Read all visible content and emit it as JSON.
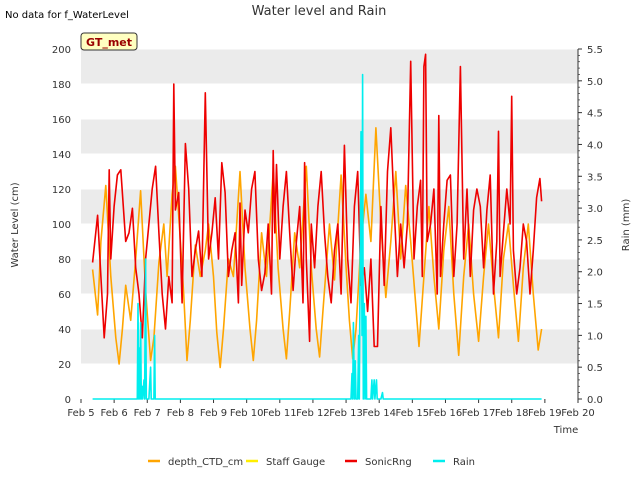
{
  "header": {
    "title": "Water level and Rain",
    "no_data_note": "No data for f_WaterLevel",
    "station_badge": "GT_met"
  },
  "colors": {
    "depth_CTD_cm": "#FFA500",
    "Staff Gauge": "#FFEE00",
    "SonicRng": "#EE0000",
    "Rain": "#00EEEE",
    "band": "#EBEBEB",
    "badge_fill": "#FFFFC0",
    "badge_text": "#990000"
  },
  "chart_data": {
    "type": "line",
    "title": "Water level and Rain",
    "xlabel": "Time",
    "ylabel": "Water Level (cm)",
    "y2label": "Rain (mm)",
    "xlim": [
      5,
      20
    ],
    "ylim": [
      0,
      200
    ],
    "y2lim": [
      0,
      5.5
    ],
    "x_ticks": [
      {
        "x": 5,
        "label": "Feb 5"
      },
      {
        "x": 6,
        "label": "Feb 6"
      },
      {
        "x": 7,
        "label": "Feb 7"
      },
      {
        "x": 8,
        "label": "Feb 8"
      },
      {
        "x": 9,
        "label": "Feb 9"
      },
      {
        "x": 10,
        "label": "Feb 10"
      },
      {
        "x": 11,
        "label": "Feb 11"
      },
      {
        "x": 12,
        "label": "Feb 12"
      },
      {
        "x": 13,
        "label": "Feb 13"
      },
      {
        "x": 14,
        "label": "Feb 14"
      },
      {
        "x": 15,
        "label": "Feb 15"
      },
      {
        "x": 16,
        "label": "Feb 16"
      },
      {
        "x": 17,
        "label": "Feb 17"
      },
      {
        "x": 18,
        "label": "Feb 18"
      },
      {
        "x": 19,
        "label": "Feb 19"
      },
      {
        "x": 20,
        "label": "Feb 20"
      }
    ],
    "y_ticks": [
      0,
      20,
      40,
      60,
      80,
      100,
      120,
      140,
      160,
      180,
      200
    ],
    "y2_ticks": [
      "0.0",
      "0.5",
      "1.0",
      "1.5",
      "2.0",
      "2.5",
      "3.0",
      "3.5",
      "4.0",
      "4.5",
      "5.0",
      "5.5"
    ],
    "grid": "horizontal bands",
    "legend_position": "bottom",
    "series": [
      {
        "name": "depth_CTD_cm",
        "axis": "left",
        "points": [
          [
            5.35,
            74
          ],
          [
            5.5,
            48
          ],
          [
            5.6,
            90
          ],
          [
            5.75,
            122
          ],
          [
            5.9,
            70
          ],
          [
            6.05,
            35
          ],
          [
            6.15,
            20
          ],
          [
            6.25,
            40
          ],
          [
            6.35,
            65
          ],
          [
            6.5,
            45
          ],
          [
            6.65,
            80
          ],
          [
            6.8,
            119
          ],
          [
            6.95,
            62
          ],
          [
            7.1,
            22
          ],
          [
            7.2,
            35
          ],
          [
            7.35,
            78
          ],
          [
            7.5,
            100
          ],
          [
            7.6,
            70
          ],
          [
            7.75,
            117
          ],
          [
            7.85,
            133
          ],
          [
            8.0,
            90
          ],
          [
            8.1,
            60
          ],
          [
            8.2,
            22
          ],
          [
            8.3,
            45
          ],
          [
            8.45,
            88
          ],
          [
            8.6,
            70
          ],
          [
            8.75,
            85
          ],
          [
            8.85,
            100
          ],
          [
            9.0,
            70
          ],
          [
            9.1,
            38
          ],
          [
            9.2,
            18
          ],
          [
            9.3,
            40
          ],
          [
            9.45,
            80
          ],
          [
            9.6,
            70
          ],
          [
            9.8,
            130
          ],
          [
            9.95,
            75
          ],
          [
            10.1,
            40
          ],
          [
            10.2,
            22
          ],
          [
            10.3,
            45
          ],
          [
            10.45,
            95
          ],
          [
            10.6,
            70
          ],
          [
            10.8,
            130
          ],
          [
            10.95,
            75
          ],
          [
            11.1,
            40
          ],
          [
            11.2,
            23
          ],
          [
            11.3,
            50
          ],
          [
            11.45,
            95
          ],
          [
            11.6,
            75
          ],
          [
            11.8,
            133
          ],
          [
            11.95,
            75
          ],
          [
            12.1,
            40
          ],
          [
            12.2,
            24
          ],
          [
            12.3,
            50
          ],
          [
            12.5,
            100
          ],
          [
            12.65,
            68
          ],
          [
            12.85,
            128
          ],
          [
            13.0,
            75
          ],
          [
            13.1,
            45
          ],
          [
            13.2,
            23
          ],
          [
            13.3,
            40
          ],
          [
            13.45,
            90
          ],
          [
            13.6,
            117
          ],
          [
            13.75,
            90
          ],
          [
            13.9,
            155
          ],
          [
            14.05,
            100
          ],
          [
            14.2,
            58
          ],
          [
            14.35,
            90
          ],
          [
            14.5,
            130
          ],
          [
            14.65,
            80
          ],
          [
            14.8,
            122
          ],
          [
            14.95,
            90
          ],
          [
            15.1,
            55
          ],
          [
            15.2,
            30
          ],
          [
            15.35,
            70
          ],
          [
            15.5,
            110
          ],
          [
            15.65,
            70
          ],
          [
            15.8,
            40
          ],
          [
            15.95,
            85
          ],
          [
            16.1,
            110
          ],
          [
            16.25,
            60
          ],
          [
            16.4,
            25
          ],
          [
            16.55,
            70
          ],
          [
            16.7,
            100
          ],
          [
            16.85,
            60
          ],
          [
            17.0,
            33
          ],
          [
            17.15,
            70
          ],
          [
            17.3,
            100
          ],
          [
            17.45,
            65
          ],
          [
            17.6,
            35
          ],
          [
            17.75,
            80
          ],
          [
            17.9,
            100
          ],
          [
            18.05,
            65
          ],
          [
            18.2,
            33
          ],
          [
            18.35,
            75
          ],
          [
            18.5,
            100
          ],
          [
            18.65,
            60
          ],
          [
            18.8,
            28
          ],
          [
            18.9,
            40
          ]
        ]
      },
      {
        "name": "Staff Gauge",
        "axis": "left",
        "points": []
      },
      {
        "name": "SonicRng",
        "axis": "left",
        "points": [
          [
            5.35,
            78
          ],
          [
            5.5,
            105
          ],
          [
            5.6,
            70
          ],
          [
            5.7,
            35
          ],
          [
            5.8,
            60
          ],
          [
            5.85,
            131
          ],
          [
            5.9,
            80
          ],
          [
            6.0,
            110
          ],
          [
            6.1,
            128
          ],
          [
            6.2,
            131
          ],
          [
            6.35,
            90
          ],
          [
            6.45,
            95
          ],
          [
            6.55,
            109
          ],
          [
            6.65,
            75
          ],
          [
            6.75,
            60
          ],
          [
            6.85,
            35
          ],
          [
            6.95,
            80
          ],
          [
            7.05,
            100
          ],
          [
            7.15,
            120
          ],
          [
            7.25,
            133
          ],
          [
            7.35,
            95
          ],
          [
            7.45,
            60
          ],
          [
            7.55,
            40
          ],
          [
            7.65,
            70
          ],
          [
            7.75,
            55
          ],
          [
            7.8,
            180
          ],
          [
            7.85,
            108
          ],
          [
            7.95,
            118
          ],
          [
            8.05,
            55
          ],
          [
            8.15,
            146
          ],
          [
            8.25,
            120
          ],
          [
            8.35,
            70
          ],
          [
            8.45,
            85
          ],
          [
            8.55,
            96
          ],
          [
            8.65,
            70
          ],
          [
            8.75,
            175
          ],
          [
            8.85,
            80
          ],
          [
            8.95,
            95
          ],
          [
            9.05,
            115
          ],
          [
            9.15,
            80
          ],
          [
            9.25,
            135
          ],
          [
            9.35,
            118
          ],
          [
            9.45,
            70
          ],
          [
            9.55,
            85
          ],
          [
            9.65,
            95
          ],
          [
            9.75,
            55
          ],
          [
            9.8,
            112
          ],
          [
            9.85,
            65
          ],
          [
            9.95,
            108
          ],
          [
            10.05,
            95
          ],
          [
            10.15,
            120
          ],
          [
            10.25,
            130
          ],
          [
            10.35,
            80
          ],
          [
            10.45,
            62
          ],
          [
            10.55,
            72
          ],
          [
            10.65,
            100
          ],
          [
            10.75,
            60
          ],
          [
            10.8,
            142
          ],
          [
            10.85,
            95
          ],
          [
            10.9,
            134
          ],
          [
            11.0,
            80
          ],
          [
            11.1,
            110
          ],
          [
            11.2,
            130
          ],
          [
            11.3,
            95
          ],
          [
            11.4,
            62
          ],
          [
            11.5,
            90
          ],
          [
            11.6,
            110
          ],
          [
            11.7,
            55
          ],
          [
            11.75,
            135
          ],
          [
            11.8,
            80
          ],
          [
            11.9,
            33
          ],
          [
            11.95,
            100
          ],
          [
            12.05,
            75
          ],
          [
            12.15,
            110
          ],
          [
            12.25,
            130
          ],
          [
            12.35,
            95
          ],
          [
            12.45,
            70
          ],
          [
            12.55,
            55
          ],
          [
            12.65,
            85
          ],
          [
            12.75,
            100
          ],
          [
            12.85,
            60
          ],
          [
            12.95,
            145
          ],
          [
            13.05,
            80
          ],
          [
            13.15,
            55
          ],
          [
            13.25,
            110
          ],
          [
            13.35,
            130
          ],
          [
            13.45,
            65
          ],
          [
            13.55,
            75
          ],
          [
            13.65,
            50
          ],
          [
            13.75,
            80
          ],
          [
            13.85,
            30
          ],
          [
            13.95,
            30
          ],
          [
            14.05,
            110
          ],
          [
            14.15,
            65
          ],
          [
            14.25,
            130
          ],
          [
            14.35,
            155
          ],
          [
            14.45,
            110
          ],
          [
            14.55,
            70
          ],
          [
            14.65,
            100
          ],
          [
            14.75,
            75
          ],
          [
            14.85,
            100
          ],
          [
            14.95,
            193
          ],
          [
            15.05,
            80
          ],
          [
            15.15,
            110
          ],
          [
            15.25,
            125
          ],
          [
            15.3,
            70
          ],
          [
            15.35,
            190
          ],
          [
            15.4,
            197
          ],
          [
            15.45,
            90
          ],
          [
            15.55,
            100
          ],
          [
            15.65,
            120
          ],
          [
            15.75,
            60
          ],
          [
            15.8,
            162
          ],
          [
            15.85,
            70
          ],
          [
            15.95,
            100
          ],
          [
            16.05,
            125
          ],
          [
            16.15,
            128
          ],
          [
            16.25,
            70
          ],
          [
            16.35,
            100
          ],
          [
            16.45,
            190
          ],
          [
            16.55,
            80
          ],
          [
            16.65,
            120
          ],
          [
            16.75,
            70
          ],
          [
            16.85,
            108
          ],
          [
            16.95,
            120
          ],
          [
            17.05,
            110
          ],
          [
            17.15,
            75
          ],
          [
            17.25,
            108
          ],
          [
            17.35,
            128
          ],
          [
            17.45,
            60
          ],
          [
            17.55,
            90
          ],
          [
            17.6,
            153
          ],
          [
            17.65,
            70
          ],
          [
            17.75,
            95
          ],
          [
            17.85,
            120
          ],
          [
            17.95,
            100
          ],
          [
            18.0,
            173
          ],
          [
            18.05,
            85
          ],
          [
            18.15,
            60
          ],
          [
            18.25,
            75
          ],
          [
            18.35,
            100
          ],
          [
            18.45,
            90
          ],
          [
            18.55,
            60
          ],
          [
            18.65,
            85
          ],
          [
            18.75,
            115
          ],
          [
            18.85,
            126
          ],
          [
            18.9,
            113
          ]
        ]
      },
      {
        "name": "Rain",
        "axis": "right",
        "points": [
          [
            5.35,
            0
          ],
          [
            6.7,
            0
          ],
          [
            6.72,
            1.5
          ],
          [
            6.74,
            0
          ],
          [
            6.76,
            0.8
          ],
          [
            6.78,
            0
          ],
          [
            6.8,
            1.2
          ],
          [
            6.82,
            0
          ],
          [
            6.84,
            0.2
          ],
          [
            6.86,
            0
          ],
          [
            6.9,
            0.3
          ],
          [
            6.92,
            0
          ],
          [
            6.95,
            2.2
          ],
          [
            6.97,
            0
          ],
          [
            7.05,
            0
          ],
          [
            7.1,
            0.5
          ],
          [
            7.12,
            0
          ],
          [
            7.2,
            0
          ],
          [
            7.22,
            1.0
          ],
          [
            7.24,
            0
          ],
          [
            13.15,
            0
          ],
          [
            13.18,
            0.4
          ],
          [
            13.2,
            0
          ],
          [
            13.22,
            1.2
          ],
          [
            13.25,
            0
          ],
          [
            13.28,
            0.6
          ],
          [
            13.3,
            0
          ],
          [
            13.35,
            0
          ],
          [
            13.38,
            1.0
          ],
          [
            13.4,
            0
          ],
          [
            13.45,
            4.2
          ],
          [
            13.48,
            1.0
          ],
          [
            13.5,
            5.1
          ],
          [
            13.52,
            0
          ],
          [
            13.55,
            1.5
          ],
          [
            13.57,
            0
          ],
          [
            13.6,
            1.3
          ],
          [
            13.62,
            0
          ],
          [
            13.75,
            0
          ],
          [
            13.78,
            0.3
          ],
          [
            13.8,
            0
          ],
          [
            13.85,
            0.3
          ],
          [
            13.87,
            0
          ],
          [
            13.92,
            0.3
          ],
          [
            13.94,
            0
          ],
          [
            14.05,
            0
          ],
          [
            14.1,
            0.1
          ],
          [
            14.12,
            0
          ],
          [
            18.9,
            0
          ]
        ]
      }
    ]
  },
  "legend": {
    "items": [
      {
        "label": "depth_CTD_cm"
      },
      {
        "label": "Staff Gauge"
      },
      {
        "label": "SonicRng"
      },
      {
        "label": "Rain"
      }
    ]
  }
}
